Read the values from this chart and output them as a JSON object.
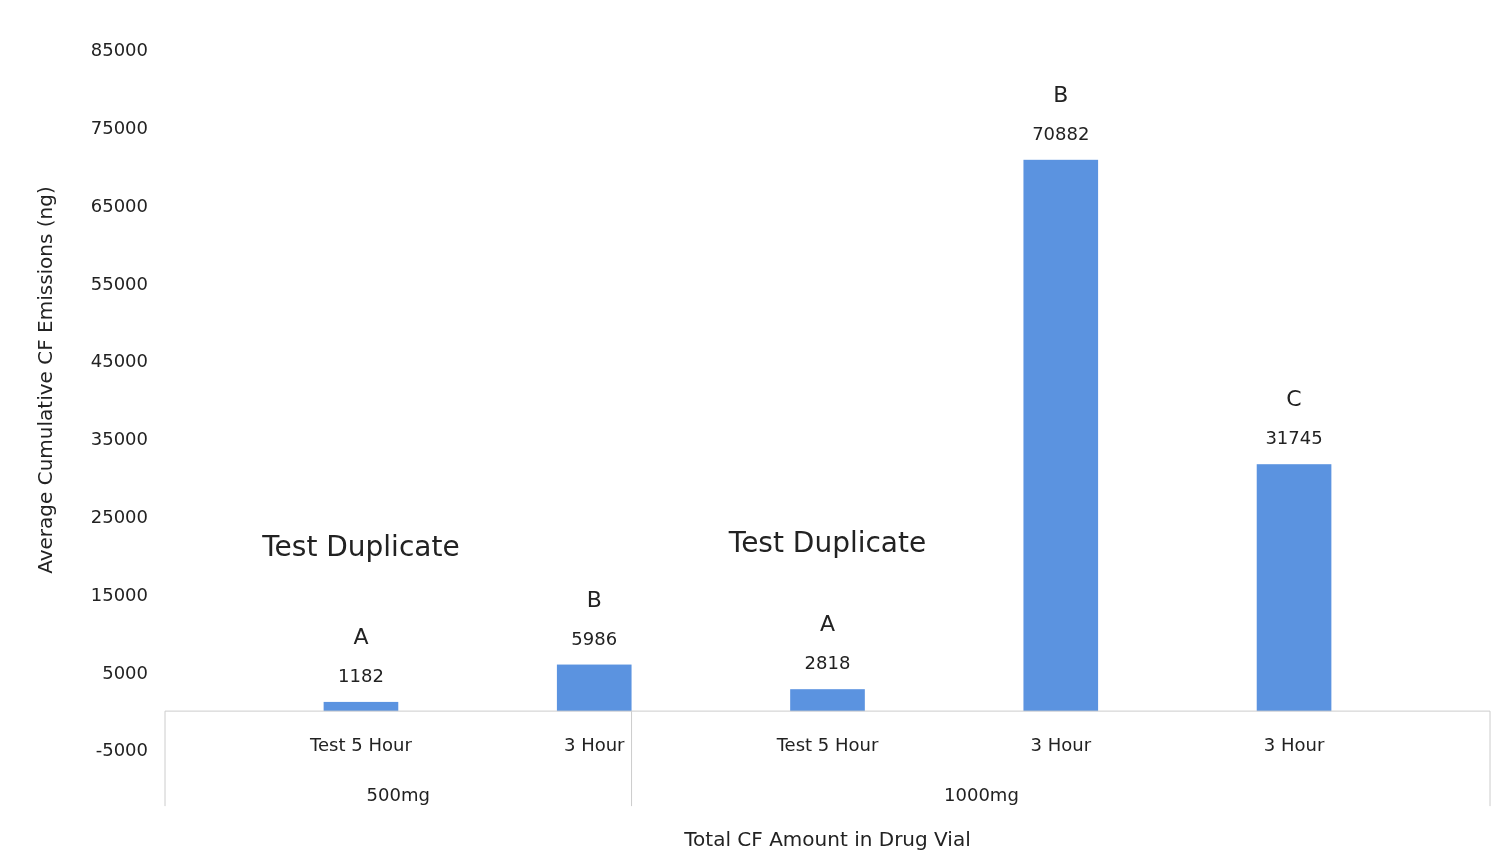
{
  "chart_data": {
    "type": "bar",
    "xlabel": "Total CF Amount in Drug Vial",
    "ylabel": "Average Cumulative CF Emissions (ng)",
    "categories": [
      "Test 5 Hour",
      "3 Hour",
      "Test 5 Hour",
      "3 Hour",
      "3 Hour"
    ],
    "values": [
      1182,
      5986,
      2818,
      70882,
      31745
    ],
    "color": "#5b93e0",
    "data_labels": true,
    "ylim": [
      -5000,
      85000
    ],
    "yticks": [
      -5000,
      5000,
      15000,
      25000,
      35000,
      45000,
      55000,
      65000,
      75000,
      85000
    ],
    "grid": false,
    "annotations": [
      "Test Duplicate",
      "Test Duplicate",
      "A",
      "B",
      "A",
      "B",
      "C",
      "500mg",
      "1000mg"
    ]
  }
}
